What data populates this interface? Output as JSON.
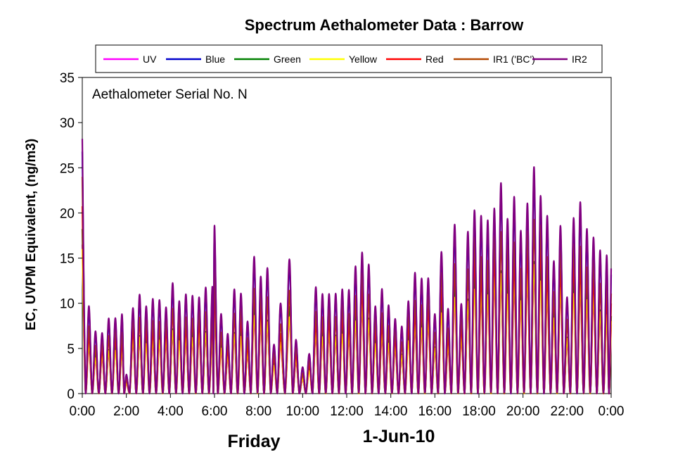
{
  "chart_data": {
    "type": "line",
    "title": "Spectrum Aethalometer Data  :  Barrow",
    "annotation": "Aethalometer  Serial No. N",
    "xlabel": "",
    "ylabel": "EC, UVPM  Equivalent,  (ng/m3)",
    "footer_left": "Friday",
    "footer_date": "1-Jun-10",
    "x_unit": "hours",
    "xlim": [
      0,
      24
    ],
    "ylim": [
      0,
      35
    ],
    "y_ticks": [
      0,
      5,
      10,
      15,
      20,
      25,
      30,
      35
    ],
    "x_ticks": [
      0,
      2,
      4,
      6,
      8,
      10,
      12,
      14,
      16,
      18,
      20,
      22,
      24
    ],
    "x_tick_labels": [
      "0:00",
      "2:00",
      "4:00",
      "6:00",
      "8:00",
      "10:00",
      "12:00",
      "14:00",
      "16:00",
      "18:00",
      "20:00",
      "22:00",
      "0:00"
    ],
    "grid": false,
    "legend_position": "top",
    "legend_boxed": true,
    "series": [
      {
        "name": "UV",
        "color": "#ff00ff",
        "scale": 0.55
      },
      {
        "name": "Blue",
        "color": "#0000cc",
        "scale": 0.95
      },
      {
        "name": "Green",
        "color": "#008000",
        "scale": 0.62
      },
      {
        "name": "Yellow",
        "color": "#ffff00",
        "scale": 0.58
      },
      {
        "name": "Red",
        "color": "#ff0000",
        "scale": 0.72
      },
      {
        "name": "IR1 ('BC')",
        "color": "#b34700",
        "scale": 0.8
      },
      {
        "name": "IR2",
        "color": "#800080",
        "scale": 1.0
      }
    ],
    "peaks": [
      [
        0.0,
        30.0
      ],
      [
        0.3,
        9.7
      ],
      [
        0.6,
        7.2
      ],
      [
        0.9,
        7.3
      ],
      [
        1.2,
        8.5
      ],
      [
        1.5,
        8.9
      ],
      [
        1.8,
        8.8
      ],
      [
        2.0,
        2.2
      ],
      [
        2.3,
        10.3
      ],
      [
        2.6,
        11.2
      ],
      [
        2.9,
        10.3
      ],
      [
        3.2,
        10.5
      ],
      [
        3.5,
        10.8
      ],
      [
        3.8,
        10.4
      ],
      [
        4.1,
        12.5
      ],
      [
        4.4,
        10.9
      ],
      [
        4.7,
        11.0
      ],
      [
        5.0,
        11.3
      ],
      [
        5.3,
        11.6
      ],
      [
        5.6,
        12.0
      ],
      [
        5.9,
        12.6
      ],
      [
        6.0,
        18.6
      ],
      [
        6.3,
        9.2
      ],
      [
        6.6,
        7.2
      ],
      [
        6.9,
        11.8
      ],
      [
        7.2,
        11.8
      ],
      [
        7.5,
        8.0
      ],
      [
        7.8,
        15.8
      ],
      [
        8.1,
        14.1
      ],
      [
        8.4,
        14.2
      ],
      [
        8.7,
        5.8
      ],
      [
        9.0,
        10.0
      ],
      [
        9.4,
        15.5
      ],
      [
        9.7,
        6.5
      ],
      [
        10.0,
        3.0
      ],
      [
        10.3,
        4.7
      ],
      [
        10.6,
        11.8
      ],
      [
        10.9,
        11.5
      ],
      [
        11.2,
        12.0
      ],
      [
        11.5,
        11.3
      ],
      [
        11.8,
        12.3
      ],
      [
        12.1,
        11.5
      ],
      [
        12.4,
        14.7
      ],
      [
        12.7,
        17.0
      ],
      [
        13.0,
        14.6
      ],
      [
        13.3,
        10.3
      ],
      [
        13.6,
        11.6
      ],
      [
        13.9,
        10.2
      ],
      [
        14.2,
        9.0
      ],
      [
        14.5,
        7.6
      ],
      [
        14.8,
        10.9
      ],
      [
        15.1,
        13.4
      ],
      [
        15.4,
        13.3
      ],
      [
        15.7,
        13.9
      ],
      [
        16.0,
        9.0
      ],
      [
        16.3,
        16.7
      ],
      [
        16.6,
        9.4
      ],
      [
        16.9,
        19.5
      ],
      [
        17.2,
        10.8
      ],
      [
        17.5,
        18.3
      ],
      [
        17.8,
        21.6
      ],
      [
        18.1,
        19.7
      ],
      [
        18.4,
        20.0
      ],
      [
        18.7,
        22.3
      ],
      [
        19.0,
        23.8
      ],
      [
        19.3,
        20.6
      ],
      [
        19.6,
        21.8
      ],
      [
        19.9,
        18.8
      ],
      [
        20.2,
        22.9
      ],
      [
        20.5,
        25.6
      ],
      [
        20.8,
        23.3
      ],
      [
        21.1,
        19.7
      ],
      [
        21.4,
        15.3
      ],
      [
        21.7,
        20.2
      ],
      [
        22.0,
        10.9
      ],
      [
        22.3,
        20.7
      ],
      [
        22.6,
        21.2
      ],
      [
        22.9,
        19.0
      ],
      [
        23.2,
        18.8
      ],
      [
        23.5,
        16.2
      ],
      [
        23.8,
        16.3
      ]
    ]
  }
}
